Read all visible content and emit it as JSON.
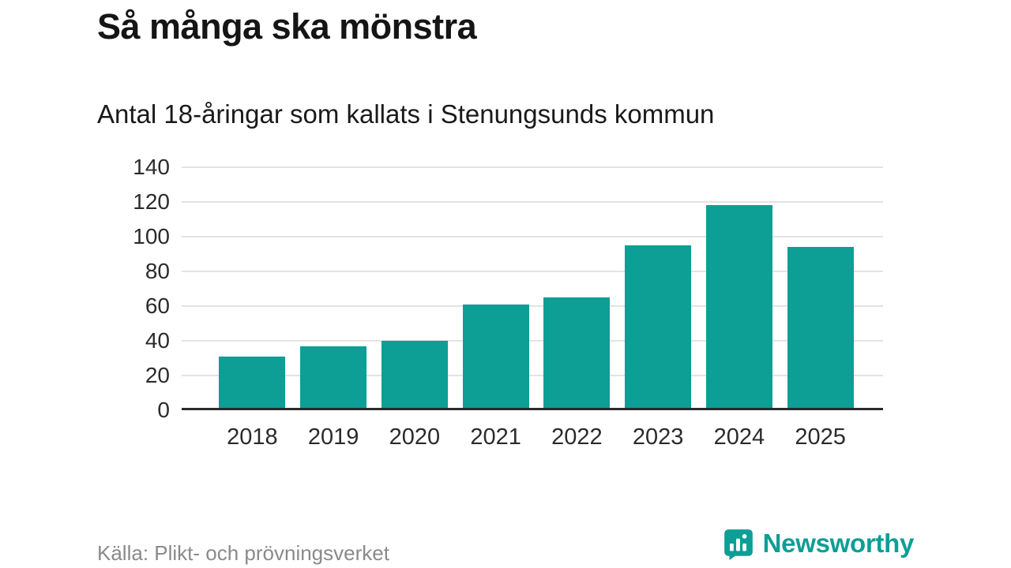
{
  "title": "Så många ska mönstra",
  "subtitle": "Antal 18-åringar som kallats i Stenungsunds kommun",
  "source": "Källa: Plikt- och prövningsverket",
  "brand": {
    "name": "Newsworthy",
    "icon": "newsworthy-bar-chart-speech-bubble-icon"
  },
  "colors": {
    "bar": "#0d9e96",
    "brand": "#0d9e96",
    "gridline": "#e3e3e3",
    "axis_line": "#2a2a2a",
    "text": "#151515",
    "muted": "#8a8a8a"
  },
  "chart_data": {
    "type": "bar",
    "categories": [
      "2018",
      "2019",
      "2020",
      "2021",
      "2022",
      "2023",
      "2024",
      "2025"
    ],
    "values": [
      31,
      37,
      40,
      61,
      65,
      95,
      118,
      94
    ],
    "title": "Så många ska mönstra",
    "subtitle": "Antal 18-åringar som kallats i Stenungsunds kommun",
    "xlabel": "",
    "ylabel": "",
    "ylim": [
      0,
      140
    ],
    "yticks": [
      0,
      20,
      40,
      60,
      80,
      100,
      120,
      140
    ],
    "grid": true,
    "legend": false,
    "bar_color": "#0d9e96"
  }
}
